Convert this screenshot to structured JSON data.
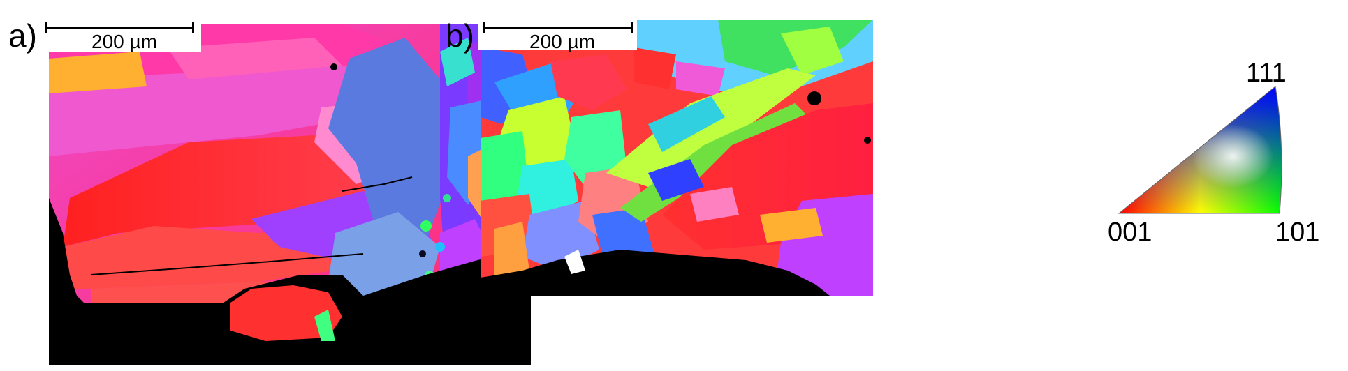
{
  "panels": [
    {
      "id": "a",
      "label": "a)",
      "scale_bar": "200 µm"
    },
    {
      "id": "b",
      "label": "b)",
      "scale_bar": "200 µm"
    }
  ],
  "legend": {
    "corner_top": "111",
    "corner_left": "001",
    "corner_right": "101",
    "colors": {
      "001": "#ff0000",
      "101": "#00ff00",
      "111": "#0000ff"
    }
  }
}
